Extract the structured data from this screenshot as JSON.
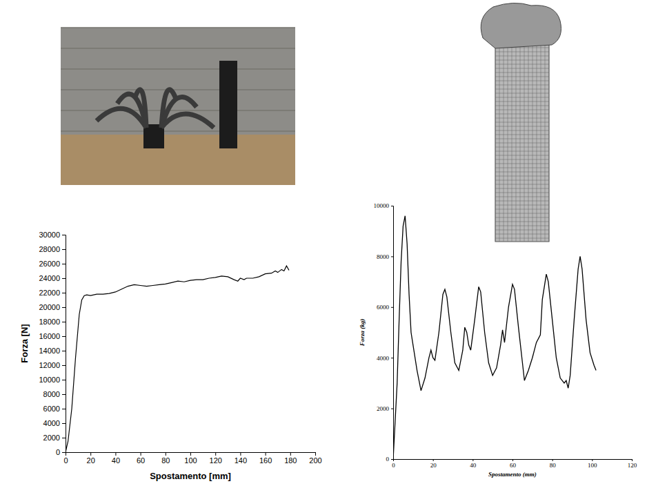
{
  "chart_data": [
    {
      "type": "line",
      "x_label": "Spostamento [mm]",
      "y_label": "Forza [N]",
      "xlim": [
        0,
        200
      ],
      "ylim": [
        0,
        30000
      ],
      "xticks": [
        0,
        20,
        40,
        60,
        80,
        100,
        120,
        140,
        160,
        180,
        200
      ],
      "yticks": [
        0,
        2000,
        4000,
        6000,
        8000,
        10000,
        12000,
        14000,
        16000,
        18000,
        20000,
        22000,
        24000,
        26000,
        28000,
        30000
      ],
      "x": [
        0,
        2,
        5,
        8,
        11,
        13,
        15,
        17,
        20,
        25,
        30,
        35,
        40,
        45,
        50,
        55,
        60,
        65,
        70,
        75,
        80,
        85,
        90,
        95,
        100,
        105,
        110,
        115,
        120,
        125,
        130,
        135,
        138,
        140,
        143,
        145,
        150,
        155,
        160,
        165,
        168,
        170,
        173,
        175,
        177,
        179
      ],
      "series": [
        {
          "color": "#000000",
          "values": [
            0,
            1500,
            6000,
            13000,
            19000,
            21000,
            21600,
            21700,
            21600,
            21800,
            21800,
            21900,
            22100,
            22500,
            22900,
            23100,
            23000,
            22900,
            23000,
            23100,
            23200,
            23400,
            23600,
            23500,
            23700,
            23800,
            23800,
            24000,
            24100,
            24300,
            24200,
            23800,
            23600,
            24000,
            23800,
            24000,
            24000,
            24200,
            24600,
            24700,
            25000,
            24800,
            25200,
            25000,
            25700,
            25100
          ]
        }
      ]
    },
    {
      "type": "line",
      "x_label": "Spostamento (mm)",
      "y_label": "Forza (kg)",
      "xlim": [
        0,
        120
      ],
      "ylim": [
        0,
        10000
      ],
      "xticks": [
        0,
        20,
        40,
        60,
        80,
        100,
        120
      ],
      "yticks": [
        0,
        2000,
        4000,
        6000,
        8000,
        10000
      ],
      "x": [
        0,
        1,
        2,
        3,
        4,
        5,
        6,
        7,
        8,
        9,
        10,
        12,
        14,
        16,
        18,
        19,
        20,
        21,
        23,
        25,
        26,
        27,
        29,
        31,
        33,
        35,
        36,
        37,
        38,
        39,
        41,
        43,
        44,
        46,
        48,
        50,
        52,
        54,
        55,
        56,
        58,
        60,
        61,
        63,
        65,
        66,
        68,
        70,
        72,
        74,
        75,
        77,
        78,
        80,
        82,
        84,
        86,
        87,
        88,
        89,
        91,
        93,
        94,
        95,
        97,
        99,
        101,
        102
      ],
      "series": [
        {
          "color": "#000000",
          "values": [
            0,
            1500,
            3000,
            5500,
            7800,
            9200,
            9600,
            8500,
            6500,
            5000,
            4500,
            3500,
            2700,
            3200,
            4000,
            4300,
            4000,
            3900,
            5000,
            6500,
            6700,
            6400,
            5000,
            3800,
            3500,
            4300,
            5200,
            5000,
            4500,
            4300,
            5500,
            6800,
            6600,
            5000,
            3800,
            3300,
            3600,
            4500,
            5100,
            4600,
            6000,
            6900,
            6700,
            5200,
            3800,
            3100,
            3500,
            4000,
            4600,
            4900,
            6300,
            7300,
            7000,
            5500,
            4000,
            3200,
            3000,
            3100,
            2800,
            3300,
            5500,
            7500,
            8000,
            7500,
            5500,
            4200,
            3700,
            3500
          ]
        }
      ]
    }
  ]
}
